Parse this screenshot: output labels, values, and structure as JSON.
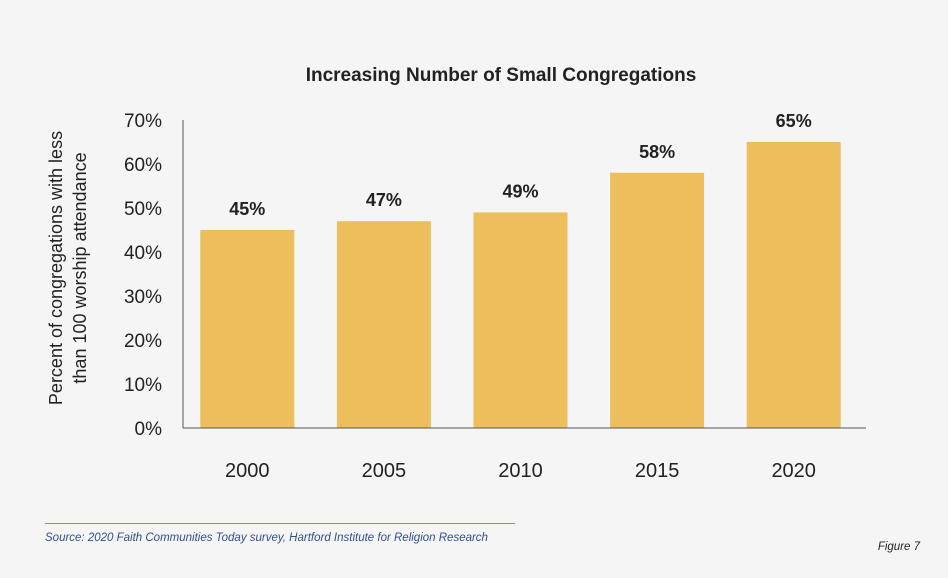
{
  "chart_data": {
    "type": "bar",
    "title": "Increasing Number of Small Congregations",
    "xlabel": "",
    "ylabel": [
      "Percent of congregations with less",
      "than 100 worship attendance"
    ],
    "categories": [
      "2000",
      "2005",
      "2010",
      "2015",
      "2020"
    ],
    "values": [
      45,
      47,
      49,
      58,
      65
    ],
    "data_labels": [
      "45%",
      "47%",
      "49%",
      "58%",
      "65%"
    ],
    "yticks": [
      "0%",
      "10%",
      "20%",
      "30%",
      "40%",
      "50%",
      "60%",
      "70%"
    ],
    "ylim": [
      0,
      70
    ],
    "bar_color": "#ecbf5c",
    "grid": false,
    "legend": "none"
  },
  "footer": {
    "source": "Source: 2020 Faith Communities Today survey, Hartford Institute for Religion Research",
    "figure_label": "Figure 7"
  }
}
